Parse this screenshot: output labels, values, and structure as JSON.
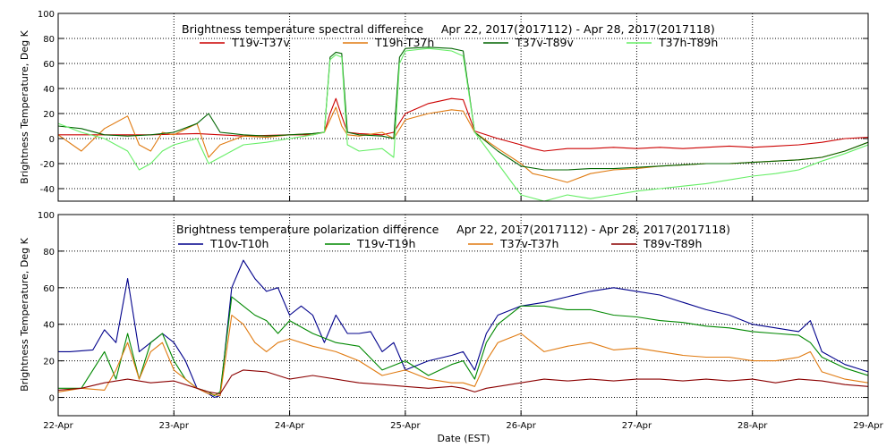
{
  "chart_data": [
    {
      "type": "line",
      "title": "Brightness temperature spectral difference     Apr 22, 2017(2017112) - Apr 28, 2017(2017118)",
      "ylabel": "Brightness Temperature, Deg K",
      "ylim": [
        -50,
        100
      ],
      "yticks": [
        -40,
        -20,
        0,
        20,
        40,
        60,
        80,
        100
      ],
      "xlim": [
        0,
        7
      ],
      "grid": true,
      "legend_position": "top",
      "series": [
        {
          "name": "T19v-T37v",
          "color": "#cc0000",
          "x": [
            0,
            0.4,
            0.8,
            1.2,
            1.6,
            2.0,
            2.2,
            2.3,
            2.35,
            2.4,
            2.45,
            2.5,
            2.6,
            2.8,
            2.9,
            3.0,
            3.2,
            3.4,
            3.5,
            3.6,
            3.8,
            4.0,
            4.1,
            4.2,
            4.4,
            4.6,
            4.8,
            5.0,
            5.2,
            5.4,
            5.6,
            5.8,
            6.0,
            6.2,
            6.4,
            6.6,
            6.8,
            7.0
          ],
          "y": [
            3,
            3,
            3,
            4,
            2,
            3,
            3,
            5,
            20,
            32,
            18,
            5,
            4,
            3,
            5,
            20,
            28,
            32,
            31,
            6,
            0,
            -5,
            -8,
            -10,
            -8,
            -8,
            -7,
            -8,
            -7,
            -8,
            -7,
            -6,
            -7,
            -6,
            -5,
            -3,
            0,
            1
          ]
        },
        {
          "name": "T19h-T37h",
          "color": "#e07a10",
          "x": [
            0,
            0.2,
            0.4,
            0.6,
            0.7,
            0.8,
            0.9,
            1.0,
            1.2,
            1.3,
            1.4,
            1.6,
            1.8,
            2.0,
            2.2,
            2.3,
            2.35,
            2.4,
            2.45,
            2.5,
            2.6,
            2.8,
            2.9,
            3.0,
            3.2,
            3.4,
            3.5,
            3.6,
            3.8,
            4.0,
            4.1,
            4.2,
            4.4,
            4.6,
            4.8,
            5.0,
            5.2,
            5.4,
            5.6,
            5.8,
            6.0,
            6.2,
            6.4,
            6.6,
            6.8,
            7.0
          ],
          "y": [
            3,
            -10,
            8,
            18,
            -5,
            -10,
            5,
            3,
            12,
            -15,
            -5,
            2,
            1,
            3,
            4,
            5,
            15,
            25,
            10,
            3,
            2,
            5,
            0,
            15,
            20,
            23,
            22,
            5,
            -8,
            -20,
            -28,
            -30,
            -35,
            -28,
            -25,
            -24,
            -22,
            -21,
            -20,
            -20,
            -19,
            -18,
            -17,
            -15,
            -10,
            -3
          ]
        },
        {
          "name": "T37v-T89v",
          "color": "#006400",
          "x": [
            0,
            0.2,
            0.4,
            0.6,
            0.8,
            1.0,
            1.2,
            1.3,
            1.4,
            1.6,
            1.8,
            2.0,
            2.2,
            2.3,
            2.35,
            2.4,
            2.45,
            2.5,
            2.6,
            2.8,
            2.9,
            2.95,
            3.0,
            3.2,
            3.4,
            3.5,
            3.6,
            3.8,
            4.0,
            4.2,
            4.4,
            4.6,
            4.8,
            5.0,
            5.2,
            5.4,
            5.6,
            5.8,
            6.0,
            6.2,
            6.4,
            6.6,
            6.8,
            7.0
          ],
          "y": [
            10,
            8,
            3,
            2,
            3,
            5,
            12,
            20,
            5,
            3,
            2,
            3,
            4,
            5,
            65,
            69,
            68,
            5,
            3,
            2,
            0,
            65,
            72,
            73,
            72,
            70,
            5,
            -10,
            -22,
            -25,
            -25,
            -24,
            -24,
            -23,
            -22,
            -21,
            -20,
            -20,
            -19,
            -18,
            -17,
            -15,
            -10,
            -3
          ]
        },
        {
          "name": "T37h-T89h",
          "color": "#66ee66",
          "x": [
            0,
            0.2,
            0.4,
            0.6,
            0.7,
            0.8,
            0.9,
            1.0,
            1.2,
            1.3,
            1.4,
            1.6,
            1.8,
            2.0,
            2.2,
            2.3,
            2.35,
            2.4,
            2.45,
            2.5,
            2.6,
            2.8,
            2.9,
            2.95,
            3.0,
            3.2,
            3.4,
            3.5,
            3.6,
            3.8,
            4.0,
            4.2,
            4.4,
            4.6,
            4.8,
            5.0,
            5.2,
            5.4,
            5.6,
            5.8,
            6.0,
            6.2,
            6.4,
            6.6,
            6.8,
            7.0
          ],
          "y": [
            12,
            5,
            0,
            -10,
            -25,
            -20,
            -10,
            -5,
            0,
            -20,
            -15,
            -5,
            -3,
            0,
            3,
            5,
            63,
            67,
            65,
            -5,
            -10,
            -8,
            -15,
            60,
            70,
            72,
            70,
            66,
            5,
            -20,
            -45,
            -50,
            -45,
            -48,
            -45,
            -42,
            -40,
            -38,
            -36,
            -33,
            -30,
            -28,
            -25,
            -18,
            -12,
            -5
          ]
        }
      ]
    },
    {
      "type": "line",
      "title": "Brightness temperature polarization difference     Apr 22, 2017(2017112) - Apr 28, 2017(2017118)",
      "ylabel": "Brightness Temperature, Deg K",
      "xlabel": "Date (EST)",
      "ylim": [
        -10,
        100
      ],
      "yticks": [
        0,
        20,
        40,
        60,
        80,
        100
      ],
      "xlim": [
        0,
        7
      ],
      "xticks": [
        "22-Apr",
        "23-Apr",
        "24-Apr",
        "25-Apr",
        "26-Apr",
        "27-Apr",
        "28-Apr",
        "29-Apr"
      ],
      "grid": true,
      "legend_position": "top",
      "series": [
        {
          "name": "T10v-T10h",
          "color": "#00008b",
          "x": [
            0,
            0.1,
            0.3,
            0.4,
            0.5,
            0.6,
            0.7,
            0.8,
            0.9,
            1.0,
            1.1,
            1.2,
            1.3,
            1.35,
            1.4,
            1.5,
            1.6,
            1.7,
            1.8,
            1.9,
            2.0,
            2.1,
            2.2,
            2.3,
            2.4,
            2.5,
            2.6,
            2.7,
            2.8,
            2.9,
            3.0,
            3.2,
            3.4,
            3.5,
            3.6,
            3.7,
            3.8,
            4.0,
            4.2,
            4.4,
            4.6,
            4.8,
            5.0,
            5.2,
            5.4,
            5.6,
            5.8,
            6.0,
            6.2,
            6.4,
            6.5,
            6.6,
            6.8,
            7.0
          ],
          "y": [
            25,
            25,
            26,
            37,
            30,
            65,
            25,
            30,
            35,
            30,
            20,
            5,
            2,
            0,
            1,
            60,
            75,
            65,
            58,
            60,
            45,
            50,
            45,
            30,
            45,
            35,
            35,
            36,
            25,
            30,
            15,
            20,
            23,
            25,
            15,
            35,
            45,
            50,
            52,
            55,
            58,
            60,
            58,
            56,
            52,
            48,
            45,
            40,
            38,
            36,
            42,
            25,
            18,
            14
          ]
        },
        {
          "name": "T19v-T19h",
          "color": "#008800",
          "x": [
            0,
            0.2,
            0.3,
            0.4,
            0.5,
            0.6,
            0.7,
            0.8,
            0.9,
            1.0,
            1.1,
            1.2,
            1.3,
            1.35,
            1.4,
            1.5,
            1.6,
            1.7,
            1.8,
            1.9,
            2.0,
            2.2,
            2.4,
            2.6,
            2.8,
            3.0,
            3.2,
            3.4,
            3.5,
            3.6,
            3.7,
            3.8,
            4.0,
            4.2,
            4.4,
            4.6,
            4.8,
            5.0,
            5.2,
            5.4,
            5.6,
            5.8,
            6.0,
            6.2,
            6.4,
            6.5,
            6.6,
            6.8,
            7.0
          ],
          "y": [
            5,
            5,
            15,
            25,
            10,
            35,
            10,
            30,
            35,
            20,
            10,
            5,
            3,
            1,
            3,
            55,
            50,
            45,
            42,
            35,
            42,
            35,
            30,
            28,
            15,
            20,
            12,
            18,
            20,
            10,
            30,
            40,
            50,
            50,
            48,
            48,
            45,
            44,
            42,
            41,
            39,
            38,
            36,
            35,
            34,
            30,
            22,
            16,
            12
          ]
        },
        {
          "name": "T37v-T37h",
          "color": "#e07a10",
          "x": [
            0,
            0.2,
            0.4,
            0.5,
            0.6,
            0.7,
            0.8,
            0.9,
            1.0,
            1.2,
            1.3,
            1.4,
            1.5,
            1.6,
            1.7,
            1.8,
            1.9,
            2.0,
            2.2,
            2.4,
            2.6,
            2.8,
            3.0,
            3.2,
            3.4,
            3.5,
            3.6,
            3.7,
            3.8,
            4.0,
            4.2,
            4.4,
            4.6,
            4.8,
            5.0,
            5.2,
            5.4,
            5.6,
            5.8,
            6.0,
            6.2,
            6.4,
            6.5,
            6.6,
            6.8,
            7.0
          ],
          "y": [
            3,
            5,
            4,
            15,
            30,
            10,
            25,
            30,
            15,
            5,
            2,
            1,
            45,
            40,
            30,
            25,
            30,
            32,
            28,
            25,
            20,
            12,
            15,
            10,
            8,
            8,
            6,
            20,
            30,
            35,
            25,
            28,
            30,
            26,
            27,
            25,
            23,
            22,
            22,
            20,
            20,
            22,
            25,
            14,
            10,
            8
          ]
        },
        {
          "name": "T89v-T89h",
          "color": "#8b0000",
          "x": [
            0,
            0.2,
            0.4,
            0.6,
            0.8,
            1.0,
            1.2,
            1.3,
            1.4,
            1.5,
            1.6,
            1.8,
            2.0,
            2.2,
            2.4,
            2.6,
            2.8,
            3.0,
            3.2,
            3.4,
            3.5,
            3.6,
            3.7,
            3.8,
            4.0,
            4.2,
            4.4,
            4.6,
            4.8,
            5.0,
            5.2,
            5.4,
            5.6,
            5.8,
            6.0,
            6.2,
            6.4,
            6.6,
            6.8,
            7.0
          ],
          "y": [
            4,
            5,
            8,
            10,
            8,
            9,
            5,
            3,
            2,
            12,
            15,
            14,
            10,
            12,
            10,
            8,
            7,
            6,
            5,
            6,
            5,
            3,
            5,
            6,
            8,
            10,
            9,
            10,
            9,
            10,
            10,
            9,
            10,
            9,
            10,
            8,
            10,
            9,
            7,
            6
          ]
        }
      ]
    }
  ]
}
